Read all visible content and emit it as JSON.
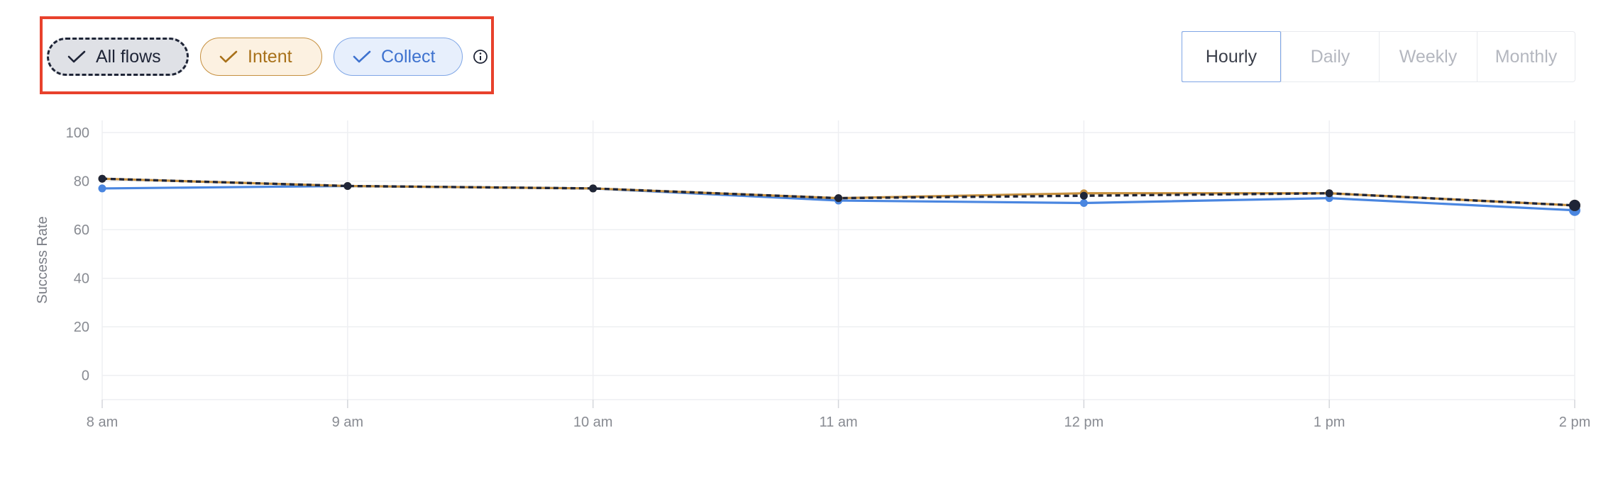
{
  "filters": {
    "all_flows": {
      "label": "All flows",
      "icon": "check-icon"
    },
    "intent": {
      "label": "Intent",
      "icon": "check-icon"
    },
    "collect": {
      "label": "Collect",
      "icon": "check-icon"
    },
    "info_icon": "info-icon"
  },
  "periods": {
    "hourly": "Hourly",
    "daily": "Daily",
    "weekly": "Weekly",
    "monthly": "Monthly",
    "selected": "Hourly"
  },
  "colors": {
    "all_flows": "#1f2537",
    "intent": "#c6903f",
    "collect": "#4a86e0",
    "highlight": "#e8412c"
  },
  "chart_data": {
    "type": "line",
    "categories": [
      "8 am",
      "9 am",
      "10 am",
      "11 am",
      "12 pm",
      "1 pm",
      "2 pm"
    ],
    "ylabel": "Success Rate",
    "xlabel": "",
    "ylim": [
      -10,
      105
    ],
    "yticks": [
      0,
      20,
      40,
      60,
      80,
      100
    ],
    "grid": true,
    "series": [
      {
        "name": "Collect",
        "values": [
          77,
          78,
          77,
          72,
          71,
          73,
          68
        ]
      },
      {
        "name": "Intent",
        "values": [
          81,
          78,
          77,
          73,
          75,
          75,
          70
        ]
      },
      {
        "name": "All flows",
        "values": [
          81,
          78,
          77,
          73,
          74,
          75,
          70
        ]
      }
    ]
  }
}
